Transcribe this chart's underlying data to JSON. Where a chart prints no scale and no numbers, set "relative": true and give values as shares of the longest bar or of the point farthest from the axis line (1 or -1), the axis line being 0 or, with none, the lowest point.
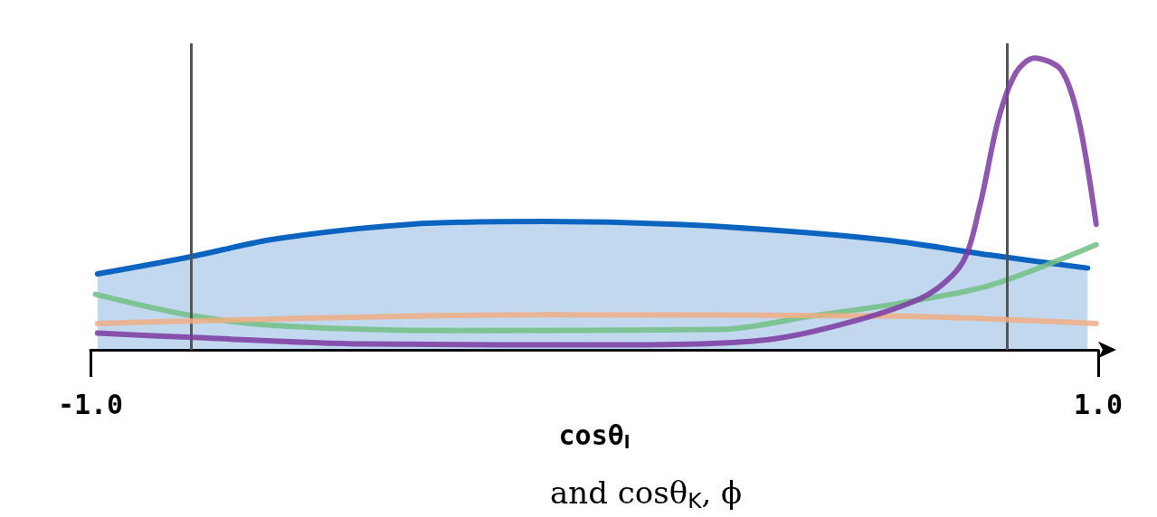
{
  "chart_data": {
    "type": "line",
    "relative": true,
    "xlabel": "cosθ$_{l}$",
    "annotations": [
      "and cosθ$_{K}$, ϕ"
    ],
    "xlim": [
      -1,
      1
    ],
    "xticks": [
      {
        "value": -1,
        "label": "-1.0"
      },
      {
        "value": 1,
        "label": "1.0"
      }
    ],
    "grid": false,
    "marker": "none",
    "line_style": "solid",
    "ref_lines": [
      {
        "axis": "x",
        "value": -0.8,
        "color": "#555555"
      },
      {
        "axis": "x",
        "value": 0.82,
        "color": "#555555"
      }
    ],
    "series": [
      {
        "type": "area",
        "color": "#0b64c0",
        "x": [
          -0.986,
          -0.809,
          -0.632,
          -0.366,
          -0.101,
          0.165,
          0.43,
          0.607,
          0.784,
          0.979
        ],
        "values": [
          0.26,
          0.316,
          0.38,
          0.43,
          0.44,
          0.43,
          0.4,
          0.37,
          0.325,
          0.28
        ]
      },
      {
        "color": "#72bf84",
        "x": [
          -0.99,
          -0.809,
          -0.632,
          -0.278,
          0.253,
          0.43,
          0.607,
          0.784,
          0.996
        ],
        "values": [
          0.19,
          0.12,
          0.083,
          0.066,
          0.07,
          0.115,
          0.16,
          0.22,
          0.36
        ]
      },
      {
        "color": "#efae82",
        "x": [
          -0.986,
          -0.101,
          0.607,
          0.996
        ],
        "values": [
          0.09,
          0.12,
          0.115,
          0.09
        ]
      },
      {
        "color": "#7b3aa0",
        "x": [
          -0.986,
          -0.809,
          -0.455,
          0.076,
          0.342,
          0.519,
          0.66,
          0.731,
          0.766,
          0.802,
          0.837,
          0.873,
          0.926,
          0.961,
          0.996
        ],
        "values": [
          0.057,
          0.043,
          0.02,
          0.017,
          0.034,
          0.1,
          0.187,
          0.3,
          0.5,
          0.79,
          0.95,
          1,
          0.96,
          0.79,
          0.43
        ]
      }
    ]
  }
}
